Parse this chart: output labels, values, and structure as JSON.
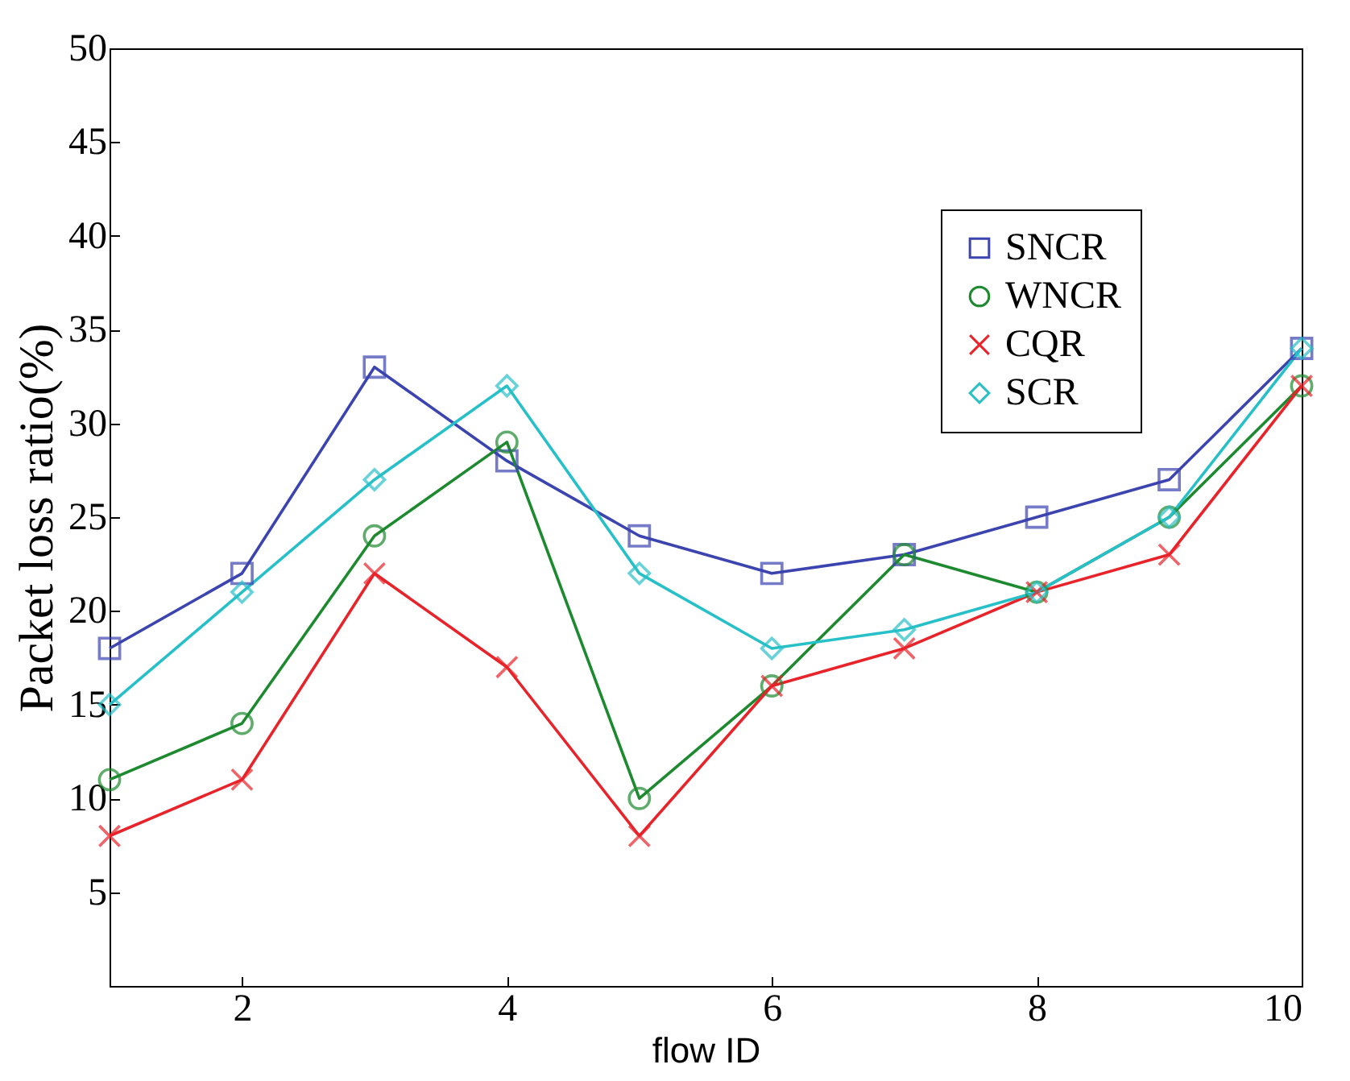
{
  "chart_data": {
    "type": "line",
    "xlabel": "flow ID",
    "ylabel": "Packet loss ratio(%)",
    "x": [
      1,
      2,
      3,
      4,
      5,
      6,
      7,
      8,
      9,
      10
    ],
    "series": [
      {
        "name": "SNCR",
        "color": "#3c44b0",
        "marker": "square",
        "values": [
          18,
          22,
          33,
          28,
          24,
          22,
          23,
          25,
          27,
          34
        ]
      },
      {
        "name": "WNCR",
        "color": "#1e8a30",
        "marker": "circle",
        "values": [
          11,
          14,
          24,
          29,
          10,
          16,
          23,
          21,
          25,
          32
        ]
      },
      {
        "name": "CQR",
        "color": "#e8232a",
        "marker": "cross",
        "values": [
          8,
          11,
          22,
          17,
          8,
          16,
          18,
          21,
          23,
          32
        ]
      },
      {
        "name": "SCR",
        "color": "#27c0c8",
        "marker": "diamond",
        "values": [
          15,
          21,
          27,
          32,
          22,
          18,
          19,
          21,
          25,
          34
        ]
      }
    ],
    "xlim": [
      1,
      10
    ],
    "xticks": [
      2,
      4,
      6,
      8,
      10
    ],
    "ylim": [
      0,
      50
    ],
    "yticks": [
      5,
      10,
      15,
      20,
      25,
      30,
      35,
      40,
      45,
      50
    ],
    "grid": false,
    "legend": "top right",
    "line_style": "solid"
  }
}
